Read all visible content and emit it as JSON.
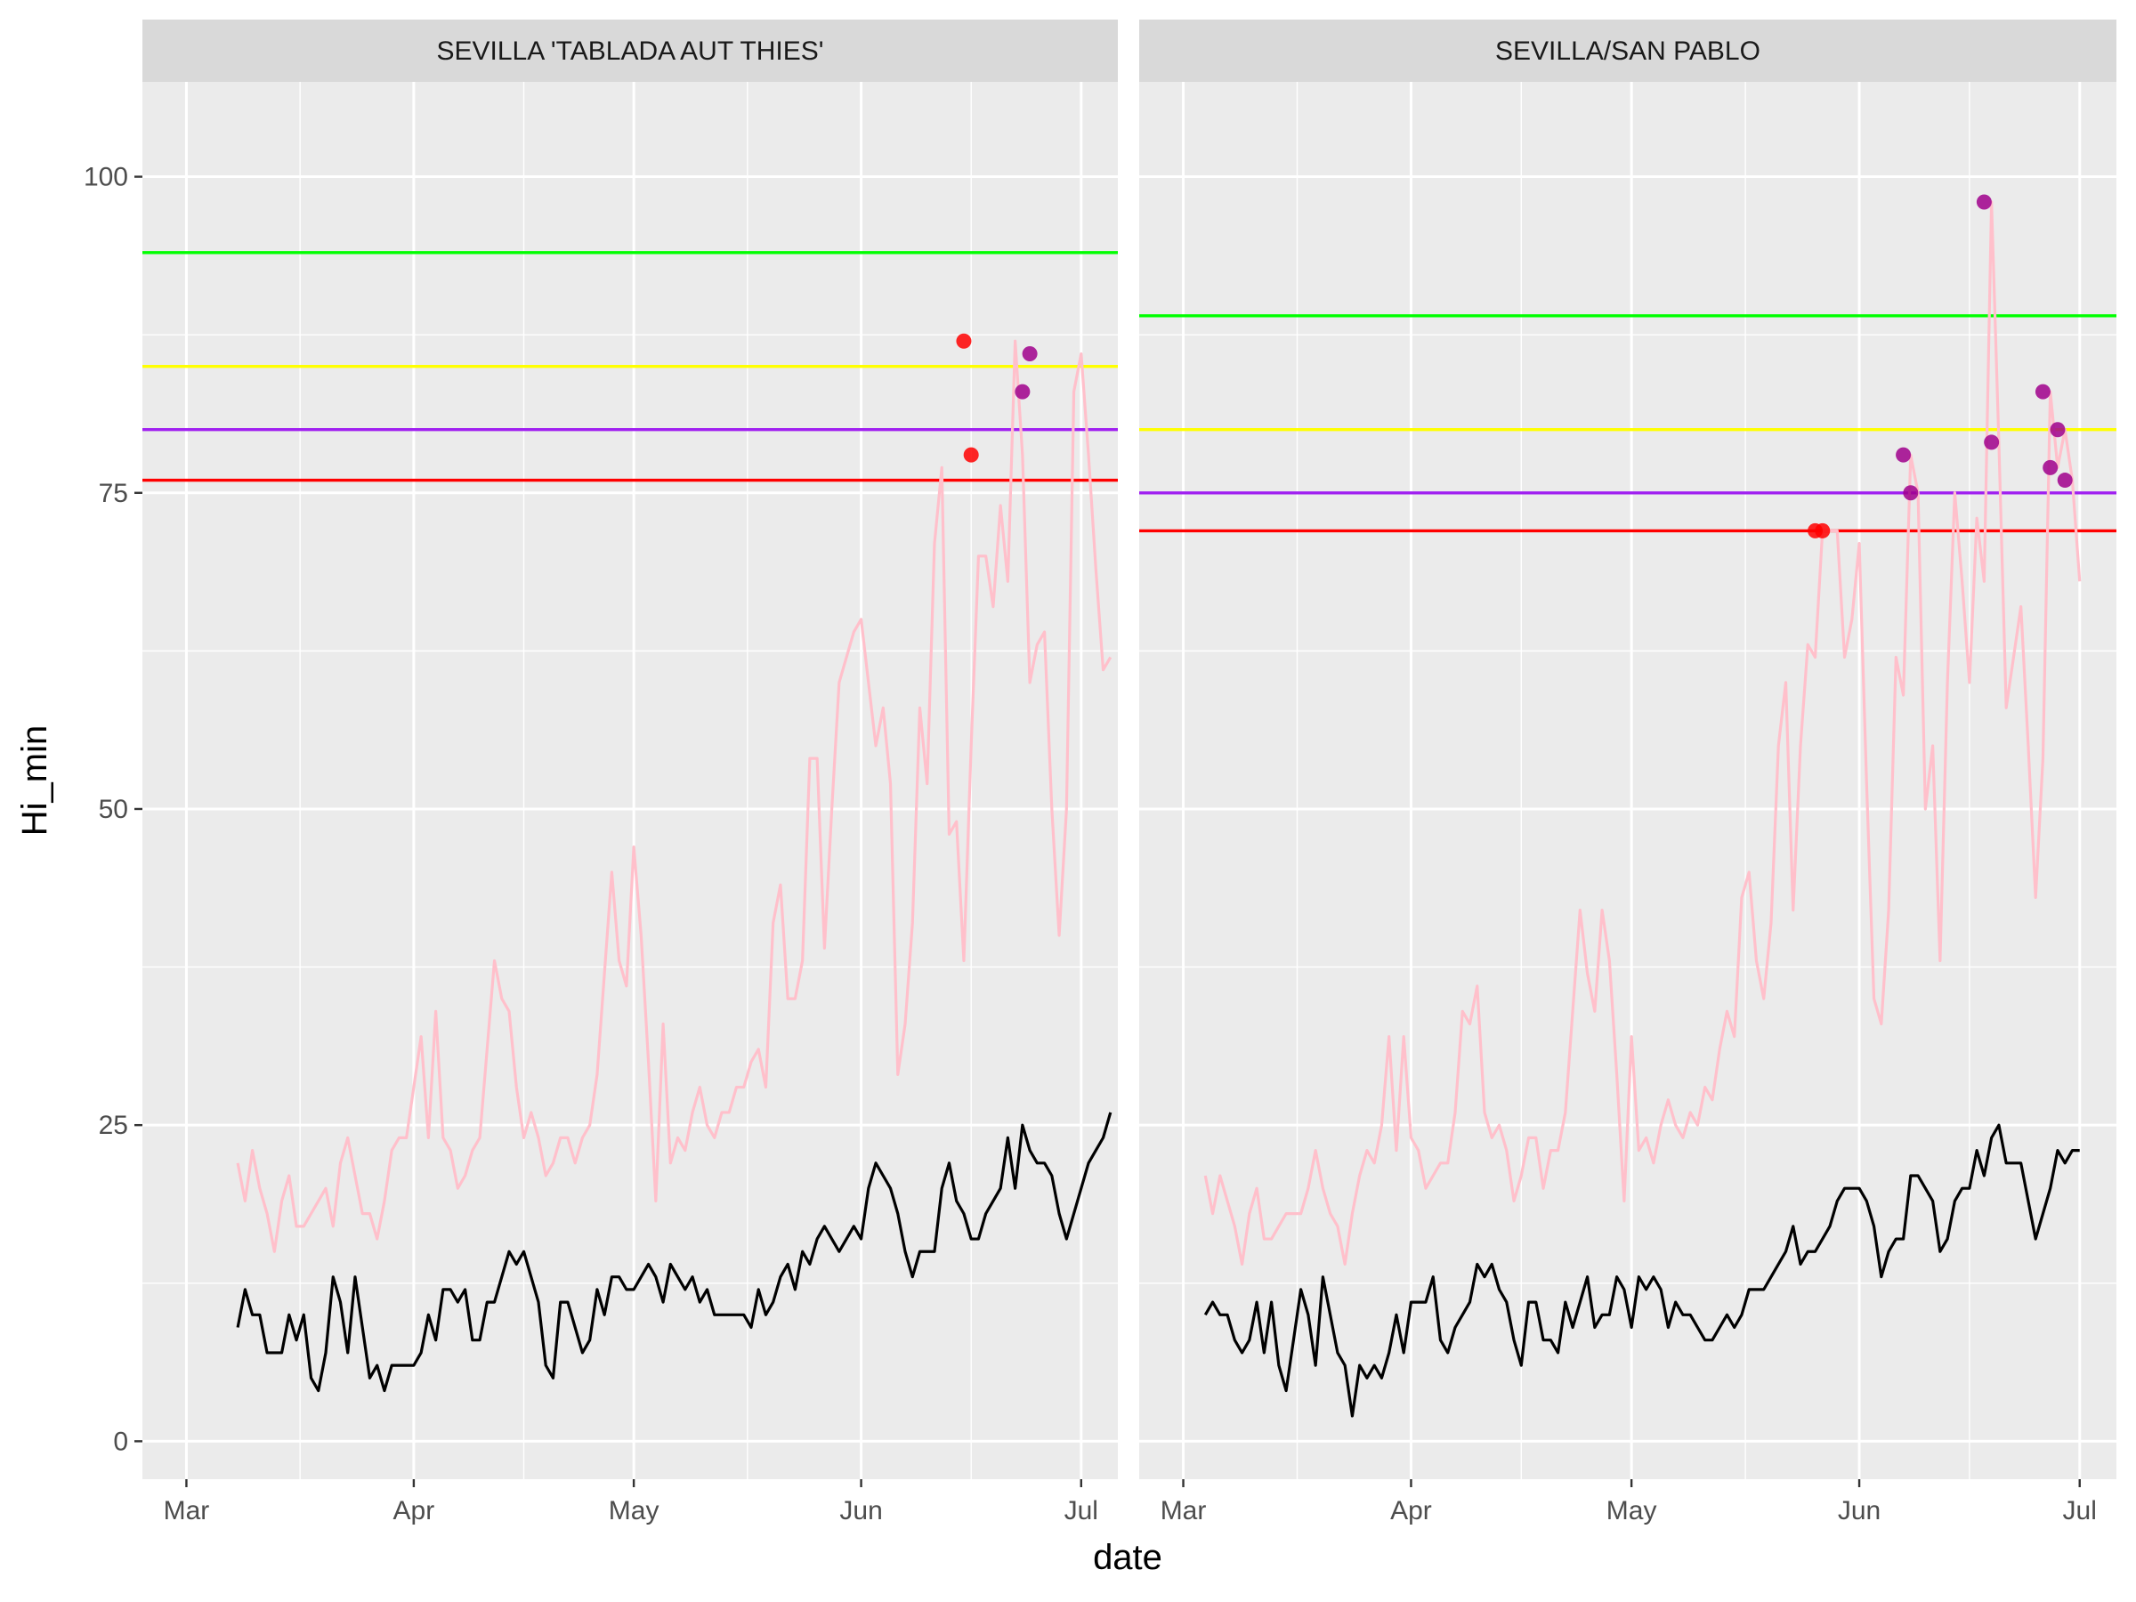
{
  "chart_data": {
    "type": "line",
    "xlabel": "date",
    "ylabel": "Hi_min",
    "ylim": [
      -3,
      107.5
    ],
    "yticks": [
      0,
      25,
      50,
      75,
      100
    ],
    "xtick_labels": [
      "Mar",
      "Apr",
      "May",
      "Jun",
      "Jul"
    ],
    "xtick_dates": [
      "2024-03-01",
      "2024-04-01",
      "2024-05-01",
      "2024-06-01",
      "2024-07-01"
    ],
    "xlim": [
      "2024-02-24",
      "2024-07-06"
    ],
    "colors": {
      "panel_bg": "#ebebeb",
      "strip_bg": "#d9d9d9",
      "grid": "#ffffff",
      "max_line": "#ffc0cb",
      "min_line": "#000000",
      "green": "#00ff00",
      "yellow": "#ffff00",
      "purple": "#a020f0",
      "red": "#ff0000",
      "point_red": "#ff0000",
      "point_purple": "#a0008c"
    },
    "panels": [
      {
        "strip": "SEVILLA 'TABLADA AUT THIES'",
        "start_date": "2024-03-08",
        "end_date": "2024-06-30",
        "thresholds": [
          {
            "color_key": "green",
            "value": 94
          },
          {
            "color_key": "yellow",
            "value": 85
          },
          {
            "color_key": "purple",
            "value": 80
          },
          {
            "color_key": "red",
            "value": 76
          }
        ],
        "max_series": [
          22,
          19,
          23,
          20,
          18,
          15,
          19,
          21,
          17,
          17,
          18,
          19,
          20,
          17,
          22,
          24,
          21,
          18,
          18,
          16,
          19,
          23,
          24,
          24,
          28,
          32,
          24,
          34,
          24,
          23,
          20,
          21,
          23,
          24,
          31,
          38,
          35,
          34,
          28,
          24,
          26,
          24,
          21,
          22,
          24,
          24,
          22,
          24,
          25,
          29,
          37,
          45,
          38,
          36,
          47,
          40,
          30,
          19,
          33,
          22,
          24,
          23,
          26,
          28,
          25,
          24,
          26,
          26,
          28,
          28,
          30,
          31,
          28,
          41,
          44,
          35,
          35,
          38,
          54,
          54,
          39,
          50,
          60,
          62,
          64,
          65,
          60,
          55,
          58,
          52,
          29,
          33,
          41,
          58,
          52,
          71,
          77,
          48,
          49,
          38,
          55,
          70,
          70,
          66,
          74,
          68,
          87,
          78,
          60,
          63,
          64,
          50,
          40,
          50,
          83,
          86,
          78,
          69,
          61,
          62
        ],
        "min_series": [
          9,
          12,
          10,
          10,
          7,
          7,
          7,
          10,
          8,
          10,
          5,
          4,
          7,
          13,
          11,
          7,
          13,
          9,
          5,
          6,
          4,
          6,
          6,
          6,
          6,
          7,
          10,
          8,
          12,
          12,
          11,
          12,
          8,
          8,
          11,
          11,
          13,
          15,
          14,
          15,
          13,
          11,
          6,
          5,
          11,
          11,
          9,
          7,
          8,
          12,
          10,
          13,
          13,
          12,
          12,
          13,
          14,
          13,
          11,
          14,
          13,
          12,
          13,
          11,
          12,
          10,
          10,
          10,
          10,
          10,
          9,
          12,
          10,
          11,
          13,
          14,
          12,
          15,
          14,
          16,
          17,
          16,
          15,
          16,
          17,
          16,
          20,
          22,
          21,
          20,
          18,
          15,
          13,
          15,
          15,
          15,
          20,
          22,
          19,
          18,
          16,
          16,
          18,
          19,
          20,
          24,
          20,
          25,
          23,
          22,
          22,
          21,
          18,
          16,
          18,
          20,
          22,
          23,
          24,
          26
        ],
        "highlight_points": [
          {
            "date": "2024-06-15",
            "value": 87,
            "color_key": "point_red"
          },
          {
            "date": "2024-06-16",
            "value": 78,
            "color_key": "point_red"
          },
          {
            "date": "2024-06-23",
            "value": 83,
            "color_key": "point_purple"
          },
          {
            "date": "2024-06-24",
            "value": 86,
            "color_key": "point_purple"
          }
        ]
      },
      {
        "strip": "SEVILLA/SAN PABLO",
        "start_date": "2024-03-04",
        "end_date": "2024-06-30",
        "thresholds": [
          {
            "color_key": "green",
            "value": 89
          },
          {
            "color_key": "yellow",
            "value": 80
          },
          {
            "color_key": "purple",
            "value": 75
          },
          {
            "color_key": "red",
            "value": 72
          }
        ],
        "max_series": [
          21,
          18,
          21,
          19,
          17,
          14,
          18,
          20,
          16,
          16,
          17,
          18,
          18,
          18,
          20,
          23,
          20,
          18,
          17,
          14,
          18,
          21,
          23,
          22,
          25,
          32,
          23,
          32,
          24,
          23,
          20,
          21,
          22,
          22,
          26,
          34,
          33,
          36,
          26,
          24,
          25,
          23,
          19,
          21,
          24,
          24,
          20,
          23,
          23,
          26,
          34,
          42,
          37,
          34,
          42,
          38,
          29,
          19,
          32,
          23,
          24,
          22,
          25,
          27,
          25,
          24,
          26,
          25,
          28,
          27,
          31,
          34,
          32,
          43,
          45,
          38,
          35,
          41,
          55,
          60,
          42,
          55,
          63,
          62,
          72,
          72,
          72,
          62,
          65,
          71,
          52,
          35,
          33,
          42,
          62,
          59,
          78,
          75,
          50,
          55,
          38,
          60,
          75,
          68,
          60,
          73,
          68,
          98,
          79,
          58,
          62,
          66,
          55,
          43,
          54,
          83,
          77,
          80,
          76,
          68
        ],
        "min_series": [
          10,
          11,
          10,
          10,
          8,
          7,
          8,
          11,
          7,
          11,
          6,
          4,
          8,
          12,
          10,
          6,
          13,
          10,
          7,
          6,
          2,
          6,
          5,
          6,
          5,
          7,
          10,
          7,
          11,
          11,
          11,
          13,
          8,
          7,
          9,
          10,
          11,
          14,
          13,
          14,
          12,
          11,
          8,
          6,
          11,
          11,
          8,
          8,
          7,
          11,
          9,
          11,
          13,
          9,
          10,
          10,
          13,
          12,
          9,
          13,
          12,
          13,
          12,
          9,
          11,
          10,
          10,
          9,
          8,
          8,
          9,
          10,
          9,
          10,
          12,
          12,
          12,
          13,
          14,
          15,
          17,
          14,
          15,
          15,
          16,
          17,
          19,
          20,
          20,
          20,
          19,
          17,
          13,
          15,
          16,
          16,
          21,
          21,
          20,
          19,
          15,
          16,
          19,
          20,
          20,
          23,
          21,
          24,
          25,
          22,
          22,
          22,
          19,
          16,
          18,
          20,
          23,
          22,
          23,
          23
        ],
        "highlight_points": [
          {
            "date": "2024-05-26",
            "value": 72,
            "color_key": "point_red"
          },
          {
            "date": "2024-05-27",
            "value": 72,
            "color_key": "point_red"
          },
          {
            "date": "2024-06-07",
            "value": 78,
            "color_key": "point_purple"
          },
          {
            "date": "2024-06-08",
            "value": 75,
            "color_key": "point_purple"
          },
          {
            "date": "2024-06-18",
            "value": 98,
            "color_key": "point_purple"
          },
          {
            "date": "2024-06-19",
            "value": 79,
            "color_key": "point_purple"
          },
          {
            "date": "2024-06-26",
            "value": 83,
            "color_key": "point_purple"
          },
          {
            "date": "2024-06-27",
            "value": 77,
            "color_key": "point_purple"
          },
          {
            "date": "2024-06-28",
            "value": 80,
            "color_key": "point_purple"
          },
          {
            "date": "2024-06-29",
            "value": 76,
            "color_key": "point_purple"
          }
        ]
      }
    ]
  }
}
